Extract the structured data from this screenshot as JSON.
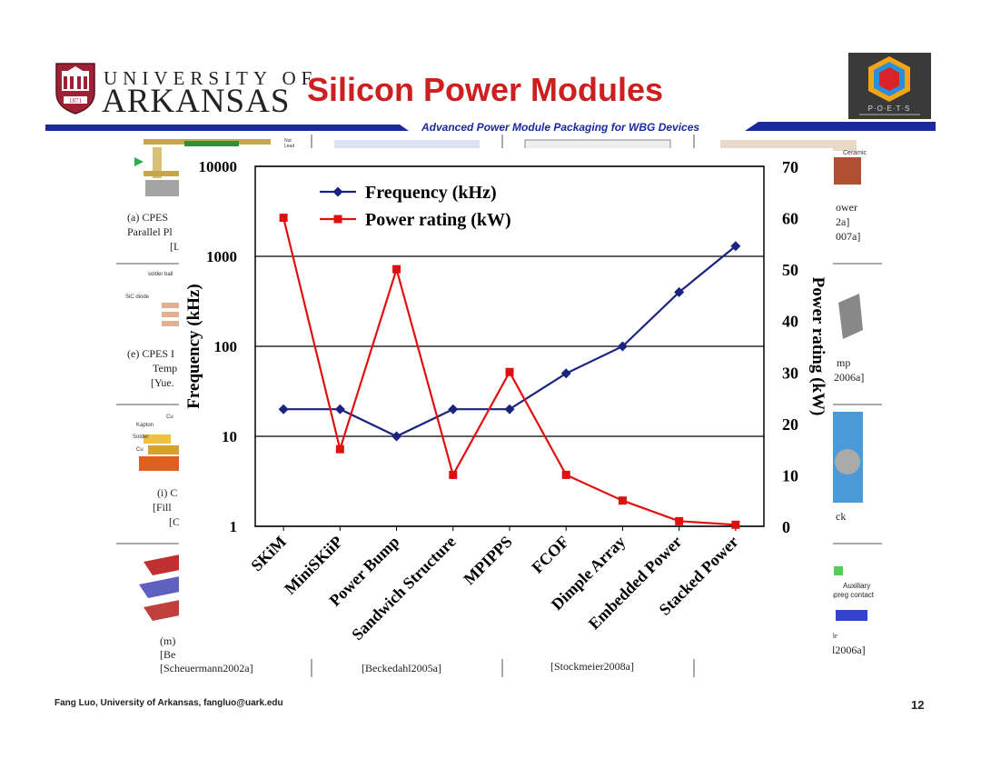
{
  "header": {
    "university_line1": "UNIVERSITY OF",
    "university_line2": "ARKANSAS",
    "title": "Silicon Power Modules",
    "subtitle": "Advanced Power Module Packaging for WBG Devices",
    "poets_label": "P·O·E·T·S",
    "crest_year": "1871"
  },
  "background_panel": {
    "captions": [
      "(a) CPES",
      "Parallel Pl",
      "[L",
      "(e) CPES I",
      "Temp",
      "[Yue.",
      "(i) C",
      "[Fill",
      "[C",
      "(m)",
      "[Be",
      "[Scheuermann2002a]",
      "[Beckedahl2005a]",
      "[Stockmeier2008a]",
      "ower",
      "2a]",
      "007a]",
      "mp",
      "2006a]",
      "ck",
      "Auxiliary",
      "spreg contact",
      "le",
      "l2006a]"
    ],
    "diagram_labels": [
      "Nut",
      "Lead",
      "solder ball",
      "SiC diode",
      "Kapton",
      "Solder",
      "Cu",
      "Cu",
      "Ceramic"
    ]
  },
  "chart_data": {
    "type": "line",
    "categories": [
      "SKiM",
      "MiniSKiiP",
      "Power Bump",
      "Sandwich Structure",
      "MPIPPS",
      "FCOF",
      "Dimple Array",
      "Embedded Power",
      "Stacked Power"
    ],
    "series": [
      {
        "name": "Frequency (kHz)",
        "axis": "left",
        "color": "#1a237e",
        "marker": "diamond",
        "values": [
          20,
          20,
          10,
          20,
          20,
          50,
          100,
          400,
          1300
        ]
      },
      {
        "name": "Power rating (kW)",
        "axis": "right",
        "color": "#e01010",
        "marker": "square",
        "values": [
          60,
          15,
          50,
          10,
          30,
          10,
          5,
          1,
          0.3
        ]
      }
    ],
    "left_axis": {
      "label": "Frequency (kHz)",
      "scale": "log",
      "range": [
        1,
        10000
      ],
      "ticks": [
        1,
        10,
        100,
        1000,
        10000
      ],
      "tick_labels": [
        "1",
        "10",
        "100",
        "1000",
        "10000"
      ]
    },
    "right_axis": {
      "label": "Power rating (kW)",
      "scale": "linear",
      "range": [
        0,
        70
      ],
      "ticks": [
        0,
        10,
        20,
        30,
        40,
        50,
        60,
        70
      ],
      "tick_labels": [
        "0",
        "10",
        "20",
        "30",
        "40",
        "50",
        "60",
        "70"
      ]
    },
    "grid": "horizontal",
    "legend_position": "top-left"
  },
  "footer": {
    "author": "Fang Luo, University of Arkansas, fangluo@uark.edu",
    "page_number": "12"
  },
  "colors": {
    "title_red": "#cc1f1f",
    "header_blue": "#1a2a9a",
    "arkansas_red": "#9d2235"
  }
}
